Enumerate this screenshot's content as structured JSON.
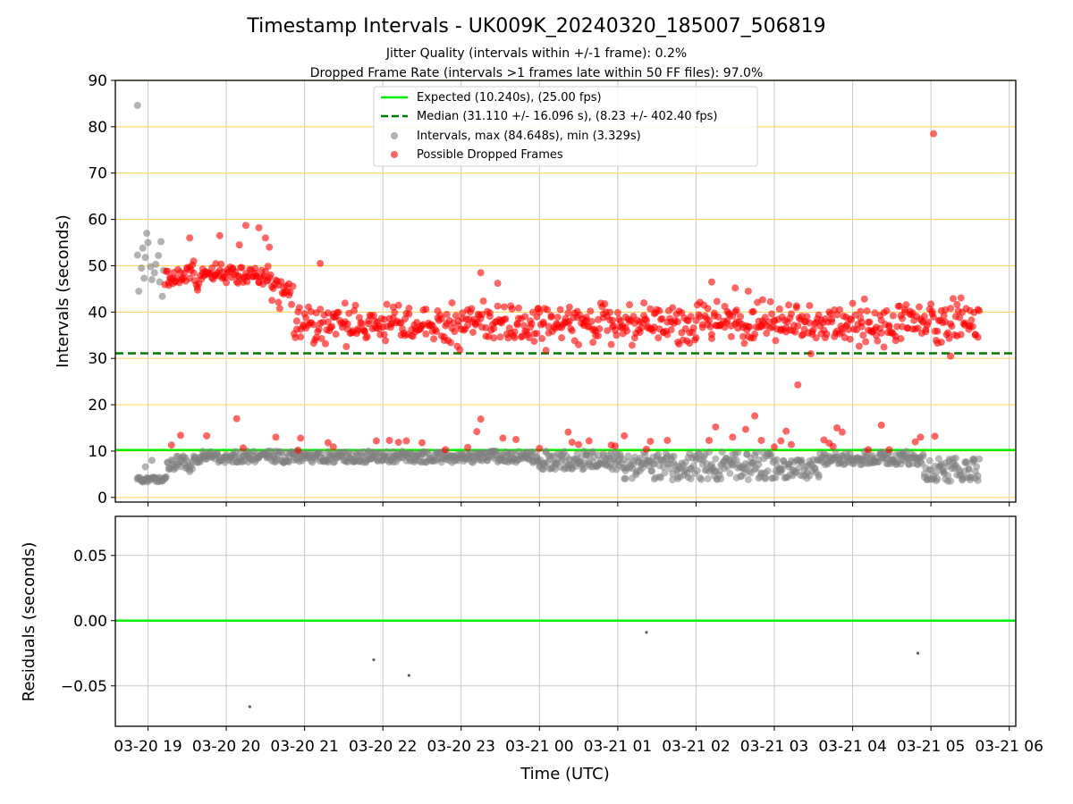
{
  "figure": {
    "title": "Timestamp Intervals - UK009K_20240320_185007_506819",
    "subtitle_line1": "Jitter Quality (intervals within +/-1 frame): 0.2%",
    "subtitle_line2": "Dropped Frame Rate (intervals >1 frames late within 50 FF files): 97.0%"
  },
  "colors": {
    "expected_line": "#00ee00",
    "median_line": "#007a00",
    "intervals": "#808080",
    "dropped": "#ff0000",
    "hgrid_top": "#ffd970",
    "vgrid": "#c8c8c8"
  },
  "chart_data": [
    {
      "type": "scatter",
      "panel": "intervals",
      "xlabel": "",
      "ylabel": "Intervals (seconds)",
      "ylim": [
        -1,
        90
      ],
      "yticks": [
        0,
        10,
        20,
        30,
        40,
        50,
        60,
        70,
        80,
        90
      ],
      "xlim": [
        "2024-03-20T18:35",
        "2024-03-21T06:05"
      ],
      "legend_position": "top-center",
      "reference_lines": [
        {
          "name": "Expected (10.240s), (25.00 fps)",
          "y": 10.24,
          "style": "solid"
        },
        {
          "name": "Median (31.110 +/- 16.096 s), (8.23 +/- 402.40 fps)",
          "y": 31.11,
          "style": "dashed"
        }
      ],
      "series": [
        {
          "name": "Intervals, max (84.648s), min (3.329s)",
          "marker": "circle",
          "approximate_cloud": [
            {
              "from": "2024-03-20T18:52",
              "to": "2024-03-20T19:15",
              "y_min": 3.3,
              "y_max": 4.5
            },
            {
              "from": "2024-03-20T19:15",
              "to": "2024-03-20T19:35",
              "y_min": 5.5,
              "y_max": 9.0
            },
            {
              "from": "2024-03-20T19:35",
              "to": "2024-03-21T00:00",
              "y_min": 7.5,
              "y_max": 10.0
            },
            {
              "from": "2024-03-21T00:00",
              "to": "2024-03-21T01:00",
              "y_min": 6.0,
              "y_max": 10.0
            },
            {
              "from": "2024-03-21T01:00",
              "to": "2024-03-21T03:00",
              "y_min": 3.8,
              "y_max": 9.8
            },
            {
              "from": "2024-03-21T03:00",
              "to": "2024-03-21T03:35",
              "y_min": 4.0,
              "y_max": 8.5
            },
            {
              "from": "2024-03-21T03:35",
              "to": "2024-03-21T04:55",
              "y_min": 7.0,
              "y_max": 10.0
            },
            {
              "from": "2024-03-21T04:55",
              "to": "2024-03-21T05:38",
              "y_min": 3.5,
              "y_max": 8.5
            }
          ],
          "points": [
            {
              "x": "2024-03-20T18:52",
              "y": 84.6
            },
            {
              "x": "2024-03-20T18:52",
              "y": 52.3
            },
            {
              "x": "2024-03-20T18:53",
              "y": 44.5
            },
            {
              "x": "2024-03-20T18:55",
              "y": 49.5
            },
            {
              "x": "2024-03-20T18:56",
              "y": 53.8
            },
            {
              "x": "2024-03-20T18:57",
              "y": 47.3
            },
            {
              "x": "2024-03-20T18:58",
              "y": 51.8
            },
            {
              "x": "2024-03-20T18:59",
              "y": 57.0
            },
            {
              "x": "2024-03-20T19:00",
              "y": 55.0
            },
            {
              "x": "2024-03-20T19:02",
              "y": 49.8
            },
            {
              "x": "2024-03-20T19:03",
              "y": 47.0
            },
            {
              "x": "2024-03-20T19:05",
              "y": 48.5
            },
            {
              "x": "2024-03-20T19:06",
              "y": 50.3
            },
            {
              "x": "2024-03-20T19:08",
              "y": 52.2
            },
            {
              "x": "2024-03-20T19:09",
              "y": 46.5
            },
            {
              "x": "2024-03-20T19:10",
              "y": 55.2
            },
            {
              "x": "2024-03-20T19:11",
              "y": 43.4
            },
            {
              "x": "2024-03-20T19:12",
              "y": 49.0
            },
            {
              "x": "2024-03-20T18:58",
              "y": 6.6
            },
            {
              "x": "2024-03-20T19:03",
              "y": 8.0
            }
          ]
        },
        {
          "name": "Possible Dropped Frames",
          "marker": "circle",
          "approximate_cloud": [
            {
              "from": "2024-03-20T19:13",
              "to": "2024-03-20T19:40",
              "y_min": 43,
              "y_max": 52
            },
            {
              "from": "2024-03-20T19:40",
              "to": "2024-03-20T20:35",
              "y_min": 45,
              "y_max": 51
            },
            {
              "from": "2024-03-20T20:35",
              "to": "2024-03-20T20:52",
              "y_min": 40,
              "y_max": 49
            },
            {
              "from": "2024-03-20T20:52",
              "to": "2024-03-21T05:38",
              "y_min": 31,
              "y_max": 44
            }
          ],
          "points": [
            {
              "x": "2024-03-20T19:32",
              "y": 56.0
            },
            {
              "x": "2024-03-20T19:55",
              "y": 56.5
            },
            {
              "x": "2024-03-20T20:10",
              "y": 54.5
            },
            {
              "x": "2024-03-20T20:15",
              "y": 58.7
            },
            {
              "x": "2024-03-20T20:25",
              "y": 58.2
            },
            {
              "x": "2024-03-20T20:30",
              "y": 56.0
            },
            {
              "x": "2024-03-20T20:33",
              "y": 54.0
            },
            {
              "x": "2024-03-20T21:12",
              "y": 50.5
            },
            {
              "x": "2024-03-20T23:15",
              "y": 48.5
            },
            {
              "x": "2024-03-20T23:28",
              "y": 46.2
            },
            {
              "x": "2024-03-21T02:12",
              "y": 46.5
            },
            {
              "x": "2024-03-21T02:30",
              "y": 45.2
            },
            {
              "x": "2024-03-21T02:40",
              "y": 44.5
            },
            {
              "x": "2024-03-21T03:18",
              "y": 24.3
            },
            {
              "x": "2024-03-21T03:28",
              "y": 31.0
            },
            {
              "x": "2024-03-21T05:15",
              "y": 30.5
            },
            {
              "x": "2024-03-21T05:02",
              "y": 78.5
            },
            {
              "x": "2024-03-20T19:18",
              "y": 11.3
            },
            {
              "x": "2024-03-20T19:25",
              "y": 13.4
            },
            {
              "x": "2024-03-20T19:45",
              "y": 13.3
            },
            {
              "x": "2024-03-20T20:08",
              "y": 17.0
            },
            {
              "x": "2024-03-20T20:13",
              "y": 10.7
            },
            {
              "x": "2024-03-20T20:38",
              "y": 13.0
            },
            {
              "x": "2024-03-20T20:55",
              "y": 10.2
            },
            {
              "x": "2024-03-20T20:57",
              "y": 12.8
            },
            {
              "x": "2024-03-20T21:18",
              "y": 11.8
            },
            {
              "x": "2024-03-20T21:22",
              "y": 10.9
            },
            {
              "x": "2024-03-20T21:55",
              "y": 12.2
            },
            {
              "x": "2024-03-20T22:05",
              "y": 12.3
            },
            {
              "x": "2024-03-20T22:12",
              "y": 11.9
            },
            {
              "x": "2024-03-20T22:18",
              "y": 12.2
            },
            {
              "x": "2024-03-20T22:30",
              "y": 11.8
            },
            {
              "x": "2024-03-20T22:48",
              "y": 10.3
            },
            {
              "x": "2024-03-20T23:05",
              "y": 10.8
            },
            {
              "x": "2024-03-20T23:12",
              "y": 14.2
            },
            {
              "x": "2024-03-20T23:15",
              "y": 16.9
            },
            {
              "x": "2024-03-20T23:32",
              "y": 12.8
            },
            {
              "x": "2024-03-20T23:42",
              "y": 12.5
            },
            {
              "x": "2024-03-21T00:00",
              "y": 10.6
            },
            {
              "x": "2024-03-21T00:22",
              "y": 14.1
            },
            {
              "x": "2024-03-21T00:25",
              "y": 11.9
            },
            {
              "x": "2024-03-21T00:30",
              "y": 11.4
            },
            {
              "x": "2024-03-21T00:38",
              "y": 12.2
            },
            {
              "x": "2024-03-21T00:55",
              "y": 11.3
            },
            {
              "x": "2024-03-21T00:58",
              "y": 11.1
            },
            {
              "x": "2024-03-21T01:05",
              "y": 13.3
            },
            {
              "x": "2024-03-21T01:22",
              "y": 10.4
            },
            {
              "x": "2024-03-21T01:25",
              "y": 12.1
            },
            {
              "x": "2024-03-21T01:38",
              "y": 12.3
            },
            {
              "x": "2024-03-21T02:10",
              "y": 12.3
            },
            {
              "x": "2024-03-21T02:15",
              "y": 15.2
            },
            {
              "x": "2024-03-21T02:28",
              "y": 13.0
            },
            {
              "x": "2024-03-21T02:38",
              "y": 14.7
            },
            {
              "x": "2024-03-21T02:45",
              "y": 17.6
            },
            {
              "x": "2024-03-21T02:50",
              "y": 12.3
            },
            {
              "x": "2024-03-21T03:00",
              "y": 10.9
            },
            {
              "x": "2024-03-21T03:05",
              "y": 12.2
            },
            {
              "x": "2024-03-21T03:09",
              "y": 14.3
            },
            {
              "x": "2024-03-21T03:13",
              "y": 11.4
            },
            {
              "x": "2024-03-21T03:38",
              "y": 12.4
            },
            {
              "x": "2024-03-21T03:42",
              "y": 11.7
            },
            {
              "x": "2024-03-21T03:45",
              "y": 11.0
            },
            {
              "x": "2024-03-21T03:48",
              "y": 15.0
            },
            {
              "x": "2024-03-21T03:52",
              "y": 14.1
            },
            {
              "x": "2024-03-21T04:12",
              "y": 10.3
            },
            {
              "x": "2024-03-21T04:22",
              "y": 15.6
            },
            {
              "x": "2024-03-21T04:28",
              "y": 10.3
            },
            {
              "x": "2024-03-21T04:48",
              "y": 12.0
            },
            {
              "x": "2024-03-21T04:52",
              "y": 13.0
            },
            {
              "x": "2024-03-21T05:03",
              "y": 13.2
            }
          ]
        }
      ]
    },
    {
      "type": "scatter",
      "panel": "residuals",
      "xlabel": "Time (UTC)",
      "ylabel": "Residuals (seconds)",
      "ylim": [
        -0.081,
        0.08
      ],
      "yticks": [
        0.05,
        0.0,
        -0.05
      ],
      "ytick_labels": [
        "0.05",
        "0.00",
        "−0.05"
      ],
      "xticks": [
        "03-20 19",
        "03-20 20",
        "03-20 21",
        "03-20 22",
        "03-20 23",
        "03-21 00",
        "03-21 01",
        "03-21 02",
        "03-21 03",
        "03-21 04",
        "03-21 05",
        "03-21 06"
      ],
      "reference_lines": [
        {
          "y": 0.0,
          "style": "solid"
        }
      ],
      "points": [
        {
          "x": "2024-03-20T20:18",
          "y": -0.066
        },
        {
          "x": "2024-03-20T21:53",
          "y": -0.03
        },
        {
          "x": "2024-03-20T22:20",
          "y": -0.042
        },
        {
          "x": "2024-03-21T01:22",
          "y": -0.009
        },
        {
          "x": "2024-03-21T04:50",
          "y": -0.025
        }
      ]
    }
  ]
}
